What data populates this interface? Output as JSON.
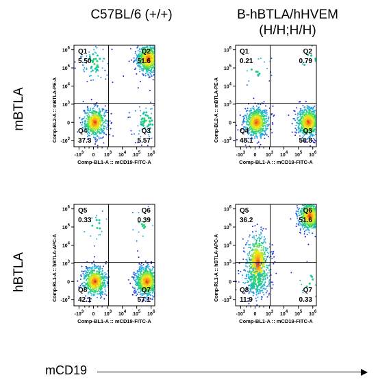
{
  "columns": [
    {
      "title_line1": "C57BL/6 (+/+)",
      "title_line2": ""
    },
    {
      "title_line1": "B-hBTLA/hHVEM",
      "title_line2": "(H/H;H/H)"
    }
  ],
  "rows": [
    "mBTLA",
    "hBTLA"
  ],
  "bottom_label": "mCD19",
  "chart_data": [
    {
      "type": "scatter",
      "row": "mBTLA",
      "column": "C57BL/6 (+/+)",
      "xlabel": "Comp-BL1-A :: mCD19-FITC-A",
      "ylabel": "Comp-BL2-A :: mBTLA-PE-A",
      "axis_scale": "biexponential",
      "quadrants": [
        {
          "name": "Q1",
          "value": "5.50"
        },
        {
          "name": "Q2",
          "value": "51.6"
        },
        {
          "name": "Q3",
          "value": "5.57"
        },
        {
          "name": "Q4",
          "value": "37.3"
        }
      ],
      "populations": [
        {
          "x": 0.1,
          "y": 0.0,
          "pct": 37.3
        },
        {
          "x": 3.8,
          "y": 3.5,
          "pct": 51.6
        },
        {
          "x": 0.1,
          "y": 3.3,
          "pct": 5.5
        },
        {
          "x": 3.7,
          "y": 0.1,
          "pct": 5.57
        }
      ]
    },
    {
      "type": "scatter",
      "row": "mBTLA",
      "column": "B-hBTLA/hHVEM (H/H;H/H)",
      "xlabel": "Comp-BL1-A :: mCD19-FITC-A",
      "ylabel": "Comp-BL2-A :: mBTLA-PE-A",
      "axis_scale": "biexponential",
      "quadrants": [
        {
          "name": "Q1",
          "value": "0.21"
        },
        {
          "name": "Q2",
          "value": "0.79"
        },
        {
          "name": "Q3",
          "value": "50.8"
        },
        {
          "name": "Q4",
          "value": "48.1"
        }
      ],
      "populations": [
        {
          "x": 0.1,
          "y": 0.0,
          "pct": 48.1
        },
        {
          "x": 3.7,
          "y": 0.0,
          "pct": 50.8
        },
        {
          "x": 0.1,
          "y": 3.0,
          "pct": 0.21
        },
        {
          "x": 3.8,
          "y": 3.4,
          "pct": 0.79
        }
      ]
    },
    {
      "type": "scatter",
      "row": "hBTLA",
      "column": "C57BL/6 (+/+)",
      "xlabel": "Comp-BL1-A :: mCD19-FITC-A",
      "ylabel": "Comp-RL1-A :: hBTLA-APC-A",
      "axis_scale": "biexponential",
      "quadrants": [
        {
          "name": "Q5",
          "value": "0.33"
        },
        {
          "name": "Q6",
          "value": "0.39"
        },
        {
          "name": "Q7",
          "value": "57.1"
        },
        {
          "name": "Q8",
          "value": "42.1"
        }
      ],
      "populations": [
        {
          "x": 0.1,
          "y": 0.0,
          "pct": 42.1
        },
        {
          "x": 3.7,
          "y": 0.0,
          "pct": 57.1
        },
        {
          "x": 0.1,
          "y": 3.0,
          "pct": 0.33
        },
        {
          "x": 3.6,
          "y": 3.2,
          "pct": 0.39
        }
      ]
    },
    {
      "type": "scatter",
      "row": "hBTLA",
      "column": "B-hBTLA/hHVEM (H/H;H/H)",
      "xlabel": "Comp-BL1-A :: mCD19-FITC-A",
      "ylabel": "Comp-RL1-A :: hBTLA-APC-A",
      "axis_scale": "biexponential",
      "quadrants": [
        {
          "name": "Q5",
          "value": "36.2"
        },
        {
          "name": "Q6",
          "value": "51.6"
        },
        {
          "name": "Q7",
          "value": "0.33"
        },
        {
          "name": "Q8",
          "value": "11.9"
        }
      ],
      "populations": [
        {
          "x": 0.2,
          "y": 1.0,
          "pct": 36.2
        },
        {
          "x": 3.8,
          "y": 3.6,
          "pct": 51.6
        },
        {
          "x": 0.1,
          "y": 0.0,
          "pct": 11.9
        },
        {
          "x": 3.7,
          "y": 0.0,
          "pct": 0.33
        }
      ]
    }
  ],
  "axis": {
    "ticks": [
      {
        "base": "-10",
        "exp": "3",
        "v": -1
      },
      {
        "base": "0",
        "exp": "",
        "v": 0
      },
      {
        "base": "10",
        "exp": "3",
        "v": 1
      },
      {
        "base": "10",
        "exp": "4",
        "v": 2
      },
      {
        "base": "10",
        "exp": "5",
        "v": 3
      },
      {
        "base": "10",
        "exp": "6",
        "v": 4
      }
    ],
    "gate_x": 1.05,
    "gate_y": 1.05
  }
}
